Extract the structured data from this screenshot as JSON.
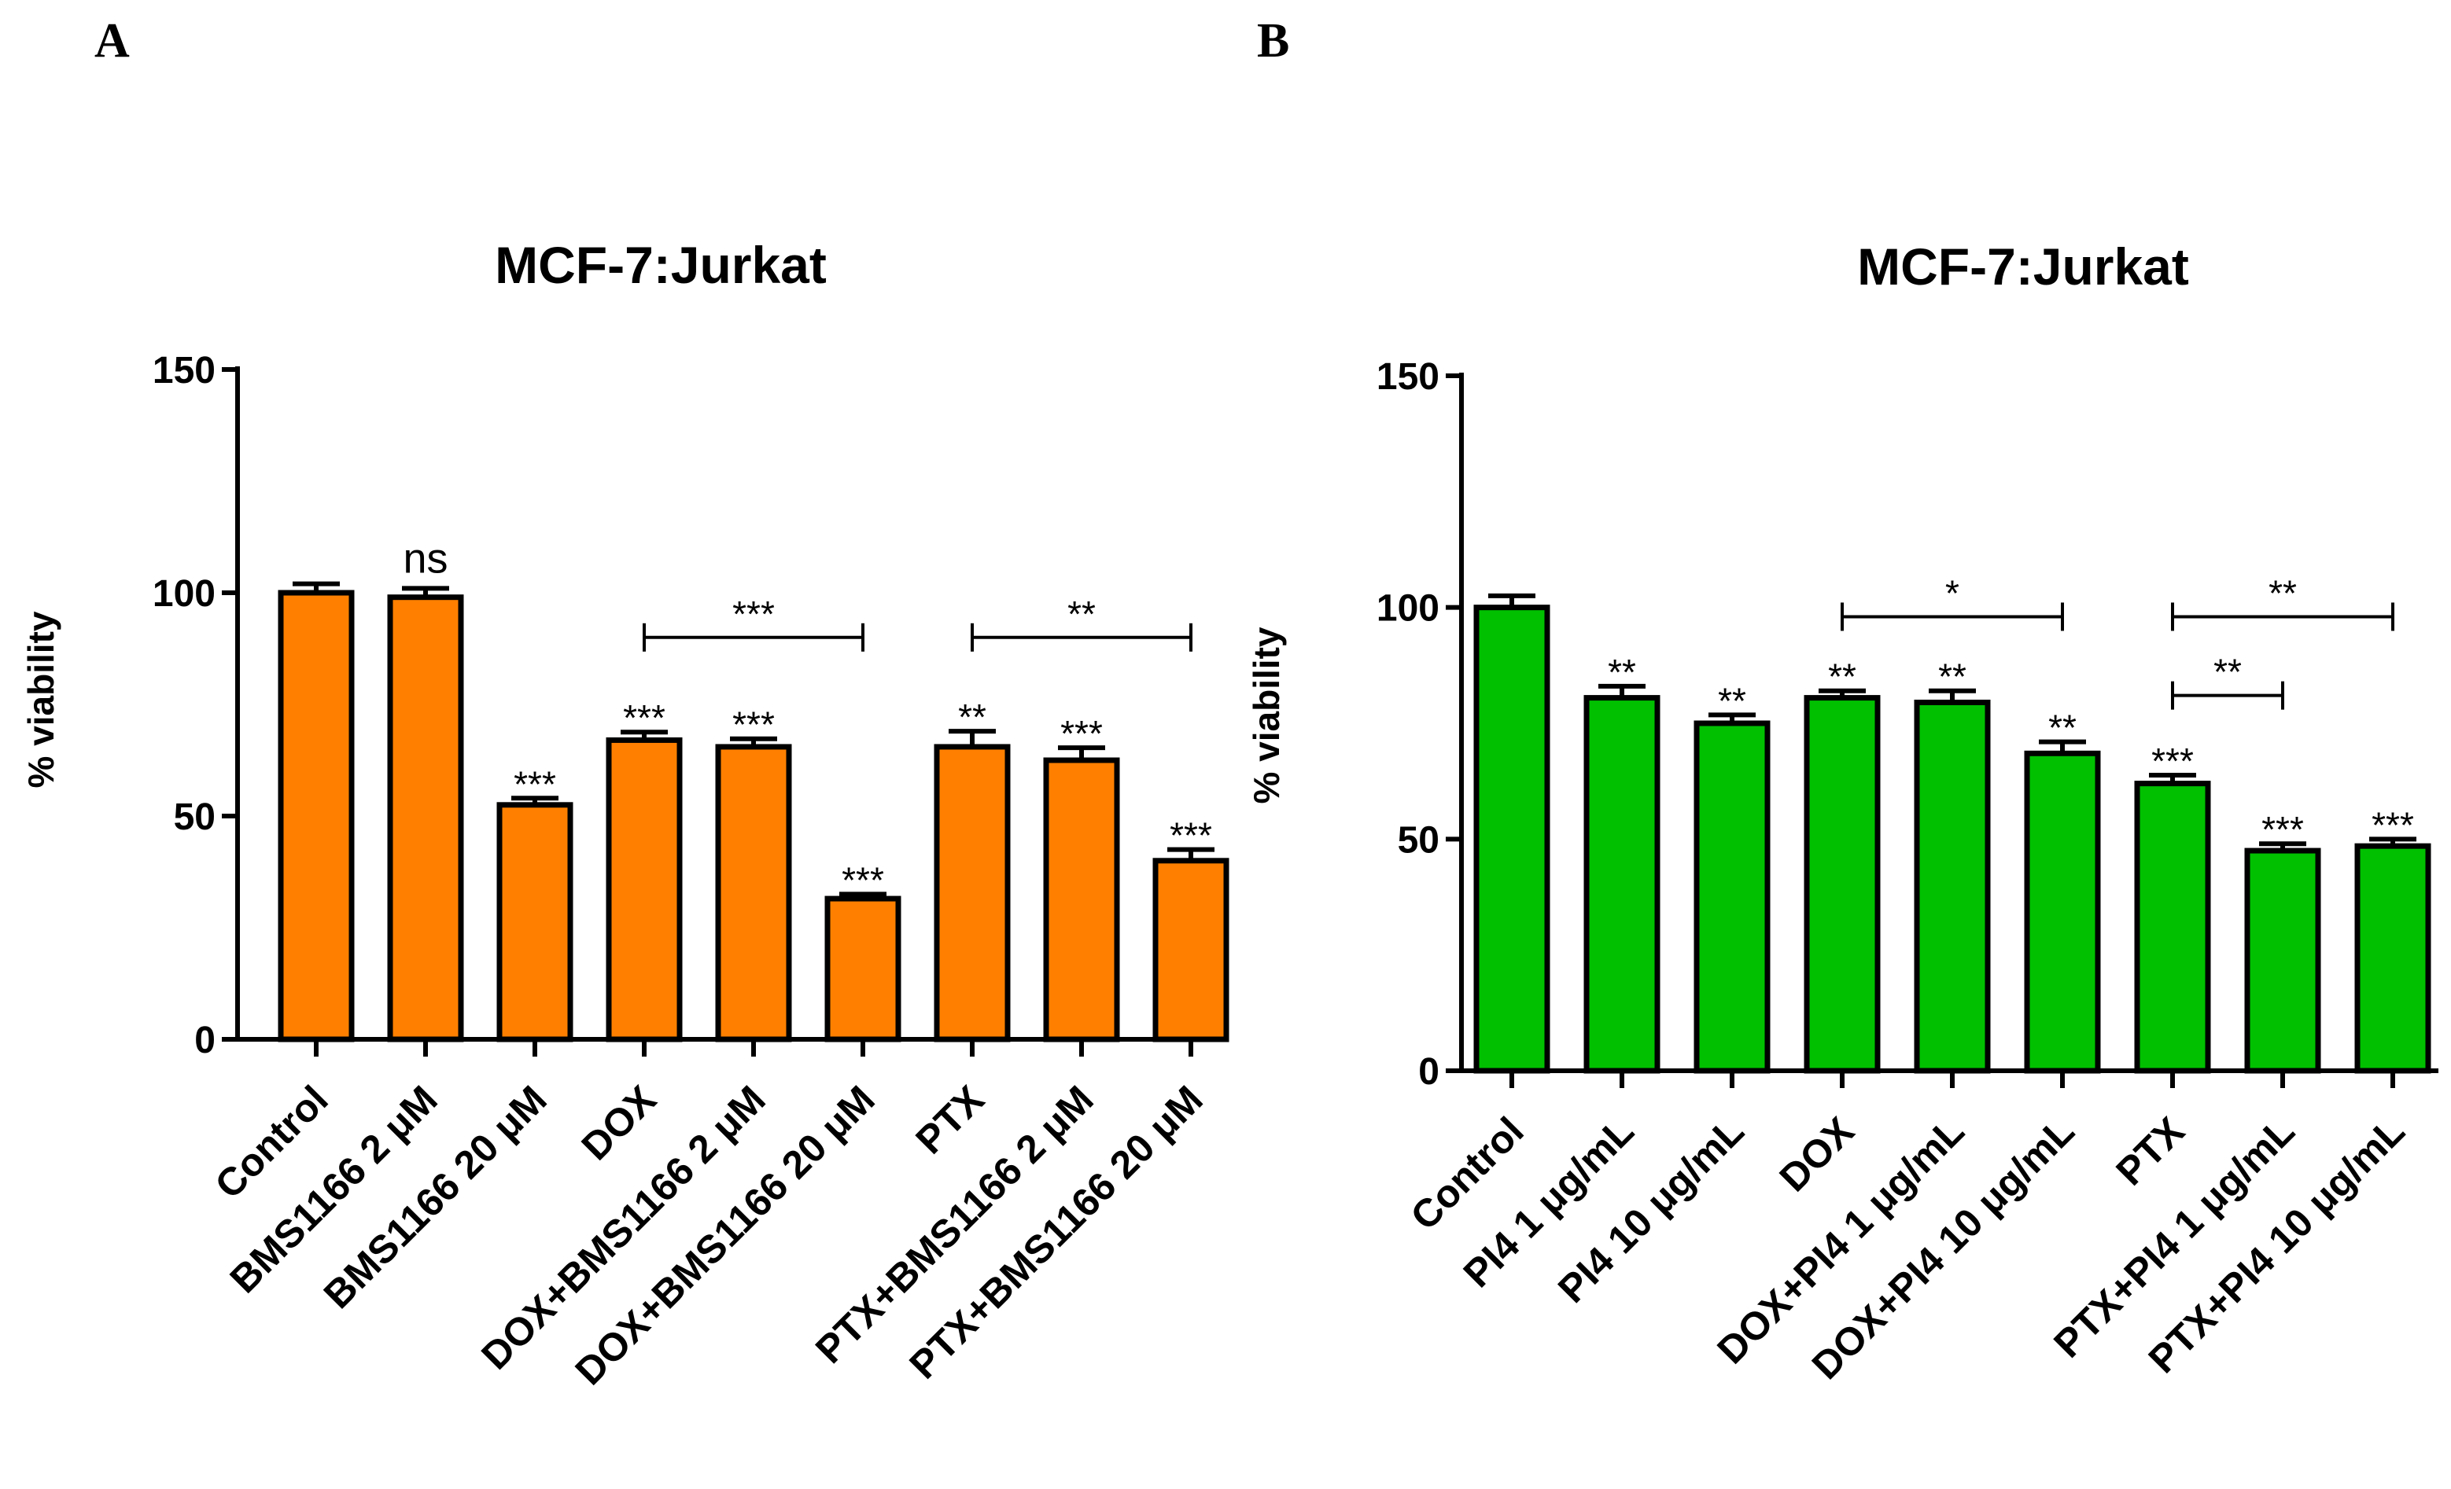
{
  "chart_data": [
    {
      "type": "bar",
      "panel": "A",
      "title": "MCF-7:Jurkat",
      "ylabel": "% viability",
      "xlabel": "",
      "ylim": [
        0,
        150
      ],
      "yticks": [
        0,
        50,
        100,
        150
      ],
      "color": "#ff8000",
      "categories": [
        "Control",
        "BMS1166 2 μM",
        "BMS1166 20 μM",
        "DOX",
        "DOX+BMS1166 2 μM",
        "DOX+BMS1166 20 μM",
        "PTX",
        "PTX+BMS1166 2 μM",
        "PTX+BMS1166 20 μM"
      ],
      "values": [
        100,
        99,
        52.5,
        67,
        65.5,
        31.5,
        65.5,
        62.5,
        40
      ],
      "errors": [
        2,
        2,
        1.5,
        1.8,
        1.8,
        1,
        3.5,
        2.8,
        2.5
      ],
      "significance": [
        "",
        "ns",
        "***",
        "***",
        "***",
        "***",
        "**",
        "***",
        "***"
      ],
      "comparisons": [
        {
          "from": 3,
          "to": 5,
          "label": "***",
          "y": 90
        },
        {
          "from": 6,
          "to": 8,
          "label": "**",
          "y": 90
        }
      ]
    },
    {
      "type": "bar",
      "panel": "B",
      "title": "MCF-7:Jurkat",
      "ylabel": "% viability",
      "xlabel": "",
      "ylim": [
        0,
        150
      ],
      "yticks": [
        0,
        50,
        100,
        150
      ],
      "color": "#00c000",
      "categories": [
        "Control",
        "PI4 1 μg/mL",
        "PI4 10 μg/mL",
        "DOX",
        "DOX+PI4 1 μg/mL",
        "DOX+PI4 10 μg/mL",
        "PTX",
        "PTX+PI4 1 μg/mL",
        "PTX+PI4 10 μg/mL"
      ],
      "values": [
        100,
        80.5,
        75,
        80.5,
        79.5,
        68.5,
        62,
        47.5,
        48.5
      ],
      "errors": [
        2.5,
        2.5,
        1.8,
        1.5,
        2.5,
        2.5,
        1.8,
        1.5,
        1.5
      ],
      "significance": [
        "",
        "**",
        "**",
        "**",
        "**",
        "**",
        "***",
        "***",
        "***"
      ],
      "comparisons": [
        {
          "from": 3,
          "to": 5,
          "label": "*",
          "y": 98
        },
        {
          "from": 6,
          "to": 8,
          "label": "**",
          "y": 98
        },
        {
          "from": 6,
          "to": 7,
          "label": "**",
          "y": 81
        }
      ]
    }
  ]
}
